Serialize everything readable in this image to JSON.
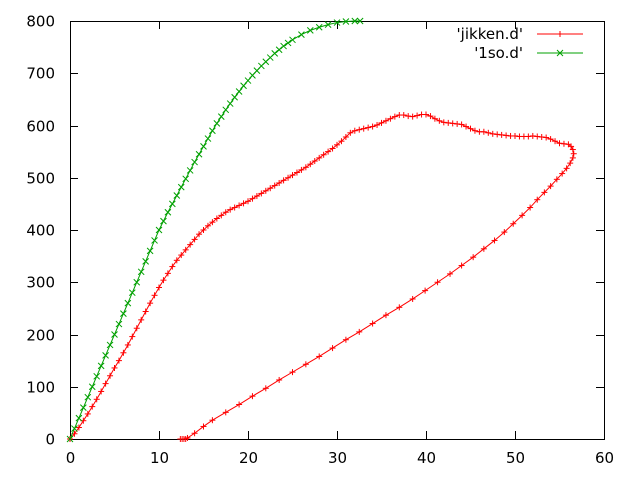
{
  "chart_data": {
    "type": "line",
    "title": "",
    "xlabel": "",
    "ylabel": "",
    "xlim": [
      0,
      60
    ],
    "ylim": [
      0,
      800
    ],
    "xticks": [
      0,
      10,
      20,
      30,
      40,
      50,
      60
    ],
    "yticks": [
      0,
      100,
      200,
      300,
      400,
      500,
      600,
      700,
      800
    ],
    "grid": false,
    "legend_position": "top-right",
    "series": [
      {
        "name": "'jikken.d'",
        "color": "#ff0000",
        "marker": "plus",
        "points": [
          [
            0,
            0
          ],
          [
            0.5,
            10
          ],
          [
            1,
            22
          ],
          [
            1.5,
            35
          ],
          [
            2,
            48
          ],
          [
            2.5,
            62
          ],
          [
            3,
            76
          ],
          [
            3.5,
            91
          ],
          [
            4,
            106
          ],
          [
            4.5,
            121
          ],
          [
            5,
            136
          ],
          [
            5.5,
            150
          ],
          [
            6,
            165
          ],
          [
            6.5,
            180
          ],
          [
            7,
            196
          ],
          [
            7.5,
            212
          ],
          [
            8,
            228
          ],
          [
            8.5,
            244
          ],
          [
            9,
            260
          ],
          [
            9.5,
            275
          ],
          [
            10,
            290
          ],
          [
            10.5,
            304
          ],
          [
            11,
            317
          ],
          [
            11.5,
            330
          ],
          [
            12,
            342
          ],
          [
            12.5,
            352
          ],
          [
            13,
            362
          ],
          [
            13.5,
            372
          ],
          [
            14,
            382
          ],
          [
            14.5,
            392
          ],
          [
            15,
            400
          ],
          [
            15.5,
            408
          ],
          [
            16,
            415
          ],
          [
            16.5,
            422
          ],
          [
            17,
            428
          ],
          [
            17.5,
            434
          ],
          [
            18,
            439
          ],
          [
            18.5,
            443
          ],
          [
            19,
            447
          ],
          [
            19.5,
            451
          ],
          [
            20,
            455
          ],
          [
            20.5,
            460
          ],
          [
            21,
            465
          ],
          [
            21.5,
            470
          ],
          [
            22,
            475
          ],
          [
            22.5,
            480
          ],
          [
            23,
            485
          ],
          [
            23.5,
            490
          ],
          [
            24,
            495
          ],
          [
            24.5,
            500
          ],
          [
            25,
            505
          ],
          [
            25.5,
            510
          ],
          [
            26,
            515
          ],
          [
            26.5,
            520
          ],
          [
            27,
            526
          ],
          [
            27.5,
            532
          ],
          [
            28,
            538
          ],
          [
            28.5,
            544
          ],
          [
            29,
            550
          ],
          [
            29.5,
            556
          ],
          [
            30,
            563
          ],
          [
            30.5,
            570
          ],
          [
            31,
            578
          ],
          [
            31.5,
            586
          ],
          [
            32,
            590
          ],
          [
            32.5,
            592
          ],
          [
            33,
            594
          ],
          [
            33.5,
            596
          ],
          [
            34,
            598
          ],
          [
            34.5,
            601
          ],
          [
            35,
            605
          ],
          [
            35.5,
            609
          ],
          [
            36,
            613
          ],
          [
            36.5,
            617
          ],
          [
            37,
            620
          ],
          [
            37.5,
            620
          ],
          [
            38,
            618
          ],
          [
            38.5,
            617
          ],
          [
            39,
            619
          ],
          [
            39.5,
            621
          ],
          [
            40,
            621
          ],
          [
            40.5,
            618
          ],
          [
            41,
            613
          ],
          [
            41.5,
            609
          ],
          [
            42,
            606
          ],
          [
            42.5,
            605
          ],
          [
            43,
            604
          ],
          [
            43.5,
            603
          ],
          [
            44,
            602
          ],
          [
            44.5,
            598
          ],
          [
            45,
            594
          ],
          [
            45.5,
            590
          ],
          [
            46,
            588
          ],
          [
            46.5,
            588
          ],
          [
            47,
            586
          ],
          [
            47.5,
            584
          ],
          [
            48,
            583
          ],
          [
            48.5,
            582
          ],
          [
            49,
            581
          ],
          [
            49.5,
            580
          ],
          [
            50,
            580
          ],
          [
            50.5,
            579
          ],
          [
            51,
            579
          ],
          [
            51.5,
            579
          ],
          [
            52,
            580
          ],
          [
            52.5,
            579
          ],
          [
            53,
            578
          ],
          [
            53.5,
            577
          ],
          [
            54,
            574
          ],
          [
            54.5,
            570
          ],
          [
            55,
            566
          ],
          [
            55.5,
            565
          ],
          [
            56,
            564
          ],
          [
            56.3,
            560
          ],
          [
            56.5,
            554
          ],
          [
            56.6,
            546
          ],
          [
            56.5,
            538
          ],
          [
            56.2,
            528
          ],
          [
            55.8,
            518
          ],
          [
            55.3,
            508
          ],
          [
            54.7,
            497
          ],
          [
            54,
            484
          ],
          [
            53.3,
            472
          ],
          [
            52.5,
            458
          ],
          [
            51.7,
            443
          ],
          [
            50.8,
            428
          ],
          [
            49.8,
            412
          ],
          [
            48.8,
            396
          ],
          [
            47.7,
            380
          ],
          [
            46.5,
            364
          ],
          [
            45.3,
            348
          ],
          [
            44,
            332
          ],
          [
            42.7,
            316
          ],
          [
            41.3,
            300
          ],
          [
            39.9,
            284
          ],
          [
            38.5,
            268
          ],
          [
            37,
            252
          ],
          [
            35.5,
            237
          ],
          [
            34,
            221
          ],
          [
            32.5,
            205
          ],
          [
            31,
            190
          ],
          [
            29.5,
            174
          ],
          [
            28,
            158
          ],
          [
            26.5,
            143
          ],
          [
            25,
            128
          ],
          [
            23.5,
            113
          ],
          [
            22,
            97
          ],
          [
            20.5,
            82
          ],
          [
            19,
            66
          ],
          [
            17.5,
            51
          ],
          [
            16,
            36
          ],
          [
            15,
            24
          ],
          [
            14,
            11
          ],
          [
            13.2,
            2
          ],
          [
            13,
            0
          ],
          [
            12.8,
            0
          ],
          [
            12.6,
            0
          ],
          [
            12.4,
            0
          ]
        ]
      },
      {
        "name": "'1so.d'",
        "color": "#00a000",
        "marker": "cross",
        "points": [
          [
            0,
            0
          ],
          [
            0.5,
            20
          ],
          [
            1,
            40
          ],
          [
            1.5,
            60
          ],
          [
            2,
            80
          ],
          [
            2.5,
            100
          ],
          [
            3,
            120
          ],
          [
            3.5,
            140
          ],
          [
            4,
            160
          ],
          [
            4.5,
            180
          ],
          [
            5,
            200
          ],
          [
            5.5,
            220
          ],
          [
            6,
            240
          ],
          [
            6.5,
            260
          ],
          [
            7,
            280
          ],
          [
            7.5,
            300
          ],
          [
            8,
            320
          ],
          [
            8.5,
            340
          ],
          [
            9,
            360
          ],
          [
            9.5,
            380
          ],
          [
            10,
            400
          ],
          [
            10.5,
            417
          ],
          [
            11,
            434
          ],
          [
            11.5,
            450
          ],
          [
            12,
            466
          ],
          [
            12.5,
            482
          ],
          [
            13,
            498
          ],
          [
            13.5,
            514
          ],
          [
            14,
            530
          ],
          [
            14.5,
            545
          ],
          [
            15,
            560
          ],
          [
            15.5,
            575
          ],
          [
            16,
            590
          ],
          [
            16.5,
            604
          ],
          [
            17,
            617
          ],
          [
            17.5,
            630
          ],
          [
            18,
            642
          ],
          [
            18.5,
            654
          ],
          [
            19,
            665
          ],
          [
            19.5,
            676
          ],
          [
            20,
            686
          ],
          [
            20.5,
            696
          ],
          [
            21,
            705
          ],
          [
            21.5,
            714
          ],
          [
            22,
            722
          ],
          [
            22.5,
            730
          ],
          [
            23,
            738
          ],
          [
            23.5,
            745
          ],
          [
            24,
            752
          ],
          [
            24.5,
            758
          ],
          [
            25,
            764
          ],
          [
            26,
            774
          ],
          [
            27,
            782
          ],
          [
            28,
            788
          ],
          [
            29,
            793
          ],
          [
            30,
            797
          ],
          [
            31,
            799
          ],
          [
            32,
            800
          ],
          [
            32.6,
            800
          ]
        ]
      }
    ]
  }
}
